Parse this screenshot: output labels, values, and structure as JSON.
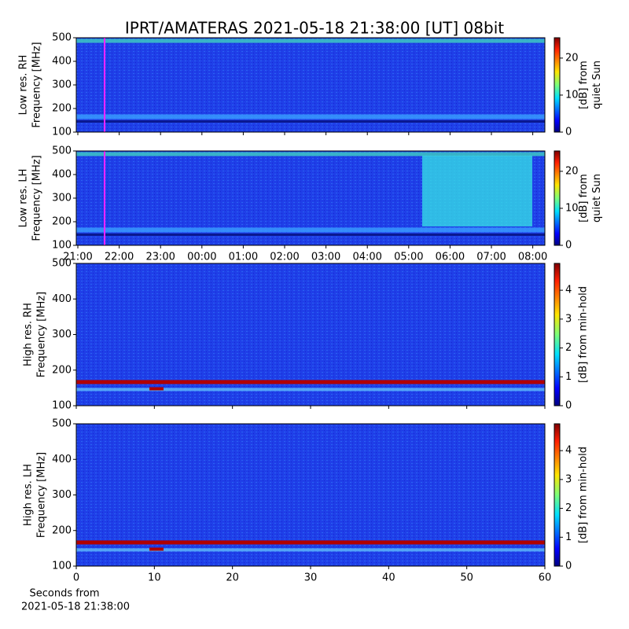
{
  "title": "IPRT/AMATERAS 2021-05-18 21:38:00 [UT]   08bit",
  "chart_data": [
    {
      "type": "heatmap",
      "ylabel": [
        "Low res. RH",
        "Frequency [MHz]"
      ],
      "ylim": [
        100,
        500
      ],
      "yticks": [
        100,
        200,
        300,
        400,
        500
      ],
      "colorbar_label": [
        "[dB] from",
        "quiet Sun"
      ],
      "clim": [
        0,
        25.5
      ],
      "cticks": [
        0,
        10,
        20
      ],
      "colormap": "jet"
    },
    {
      "type": "heatmap",
      "ylabel": [
        "Low res. LH",
        "Frequency [MHz]"
      ],
      "ylim": [
        100,
        500
      ],
      "yticks": [
        100,
        200,
        300,
        400,
        500
      ],
      "colorbar_label": [
        "[dB] from",
        "quiet Sun"
      ],
      "clim": [
        0,
        25.5
      ],
      "cticks": [
        0,
        10,
        20
      ],
      "colormap": "jet",
      "categories": [
        "21:00",
        "22:00",
        "23:00",
        "00:00",
        "01:00",
        "02:00",
        "03:00",
        "04:00",
        "05:00",
        "06:00",
        "07:00",
        "08:00"
      ]
    },
    {
      "type": "heatmap",
      "ylabel": [
        "High res. RH",
        "Frequency [MHz]"
      ],
      "ylim": [
        100,
        500
      ],
      "yticks": [
        100,
        200,
        300,
        400,
        500
      ],
      "colorbar_label": [
        "[dB] from min-hold"
      ],
      "clim": [
        0,
        4.93
      ],
      "cticks": [
        0,
        1,
        2,
        3,
        4
      ],
      "colormap": "jet"
    },
    {
      "type": "heatmap",
      "ylabel": [
        "High res. LH",
        "Frequency [MHz]"
      ],
      "ylim": [
        100,
        500
      ],
      "yticks": [
        100,
        200,
        300,
        400,
        500
      ],
      "colorbar_label": [
        "[dB] from min-hold"
      ],
      "clim": [
        0,
        4.93
      ],
      "cticks": [
        0,
        1,
        2,
        3,
        4
      ],
      "colormap": "jet",
      "xlim": [
        0,
        60
      ],
      "xticks": [
        0,
        10,
        20,
        30,
        40,
        50,
        60
      ],
      "xlabel": [
        "Seconds from",
        "2021-05-18 21:38:00"
      ]
    }
  ]
}
